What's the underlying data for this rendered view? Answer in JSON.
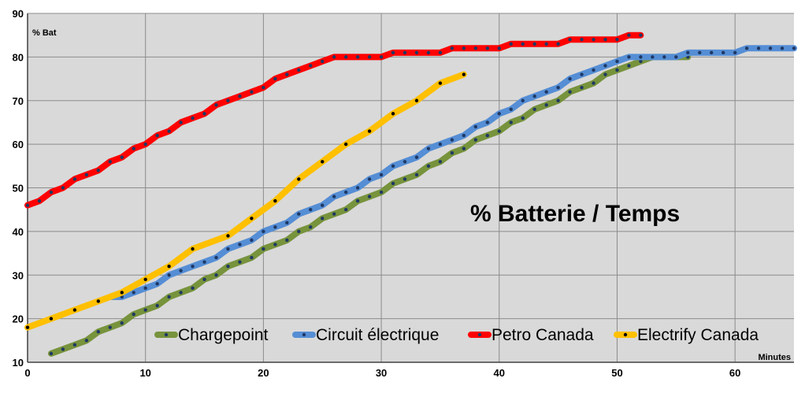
{
  "chart_data": {
    "type": "line",
    "title": "% Batterie / Temps",
    "xlabel": "Minutes",
    "ylabel": "% Bat",
    "xlim": [
      0,
      65
    ],
    "ylim": [
      10,
      90
    ],
    "xticks": [
      0,
      10,
      20,
      30,
      40,
      50,
      60
    ],
    "yticks": [
      10,
      20,
      30,
      40,
      50,
      60,
      70,
      80,
      90
    ],
    "grid": true,
    "legend_position": "bottom",
    "background_color": "#d9d9d9",
    "series": [
      {
        "name": "Chargepoint",
        "color": "#77933c",
        "marker_color": "#1f3864",
        "x": [
          2,
          3,
          4,
          5,
          6,
          7,
          8,
          9,
          10,
          11,
          12,
          13,
          14,
          15,
          16,
          17,
          18,
          19,
          20,
          21,
          22,
          23,
          24,
          25,
          26,
          27,
          28,
          29,
          30,
          31,
          32,
          33,
          34,
          35,
          36,
          37,
          38,
          39,
          40,
          41,
          42,
          43,
          44,
          45,
          46,
          47,
          48,
          49,
          50,
          51,
          52,
          53,
          54,
          55,
          56
        ],
        "y": [
          12,
          13,
          14,
          15,
          17,
          18,
          19,
          21,
          22,
          23,
          25,
          26,
          27,
          29,
          30,
          32,
          33,
          34,
          36,
          37,
          38,
          40,
          41,
          43,
          44,
          45,
          47,
          48,
          49,
          51,
          52,
          53,
          55,
          56,
          58,
          59,
          61,
          62,
          63,
          65,
          66,
          68,
          69,
          70,
          72,
          73,
          74,
          76,
          77,
          78,
          79,
          80,
          80,
          80,
          80
        ]
      },
      {
        "name": "Circuit électrique",
        "color": "#558ed5",
        "marker_color": "#1f3864",
        "x": [
          7,
          8,
          9,
          10,
          11,
          12,
          13,
          14,
          15,
          16,
          17,
          18,
          19,
          20,
          21,
          22,
          23,
          24,
          25,
          26,
          27,
          28,
          29,
          30,
          31,
          32,
          33,
          34,
          35,
          36,
          37,
          38,
          39,
          40,
          41,
          42,
          43,
          44,
          45,
          46,
          47,
          48,
          49,
          50,
          51,
          52,
          53,
          54,
          55,
          56,
          57,
          58,
          59,
          60,
          61,
          62,
          63,
          64,
          65
        ],
        "y": [
          25,
          25,
          26,
          27,
          28,
          30,
          31,
          32,
          33,
          34,
          36,
          37,
          38,
          40,
          41,
          42,
          44,
          45,
          46,
          48,
          49,
          50,
          52,
          53,
          55,
          56,
          57,
          59,
          60,
          61,
          62,
          64,
          65,
          67,
          68,
          70,
          71,
          72,
          73,
          75,
          76,
          77,
          78,
          79,
          80,
          80,
          80,
          80,
          80,
          81,
          81,
          81,
          81,
          81,
          82,
          82,
          82,
          82,
          82
        ]
      },
      {
        "name": "Petro Canada",
        "color": "#ff0000",
        "marker_color": "#1f3864",
        "x": [
          0,
          1,
          2,
          3,
          4,
          5,
          6,
          7,
          8,
          9,
          10,
          11,
          12,
          13,
          14,
          15,
          16,
          17,
          18,
          19,
          20,
          21,
          22,
          23,
          24,
          25,
          26,
          27,
          28,
          29,
          30,
          31,
          32,
          33,
          34,
          35,
          36,
          37,
          38,
          39,
          40,
          41,
          42,
          43,
          44,
          45,
          46,
          47,
          48,
          49,
          50,
          51,
          52
        ],
        "y": [
          46,
          47,
          49,
          50,
          52,
          53,
          54,
          56,
          57,
          59,
          60,
          62,
          63,
          65,
          66,
          67,
          69,
          70,
          71,
          72,
          73,
          75,
          76,
          77,
          78,
          79,
          80,
          80,
          80,
          80,
          80,
          81,
          81,
          81,
          81,
          81,
          82,
          82,
          82,
          82,
          82,
          83,
          83,
          83,
          83,
          83,
          84,
          84,
          84,
          84,
          84,
          85,
          85
        ]
      },
      {
        "name": "Electrify Canada",
        "color": "#ffc000",
        "marker_color": "#000000",
        "x": [
          0,
          2,
          4,
          6,
          8,
          10,
          12,
          14,
          17,
          19,
          21,
          23,
          25,
          27,
          29,
          31,
          33,
          35,
          37
        ],
        "y": [
          18,
          20,
          22,
          24,
          26,
          29,
          32,
          36,
          39,
          43,
          47,
          52,
          56,
          60,
          63,
          67,
          70,
          74,
          76
        ]
      }
    ]
  }
}
